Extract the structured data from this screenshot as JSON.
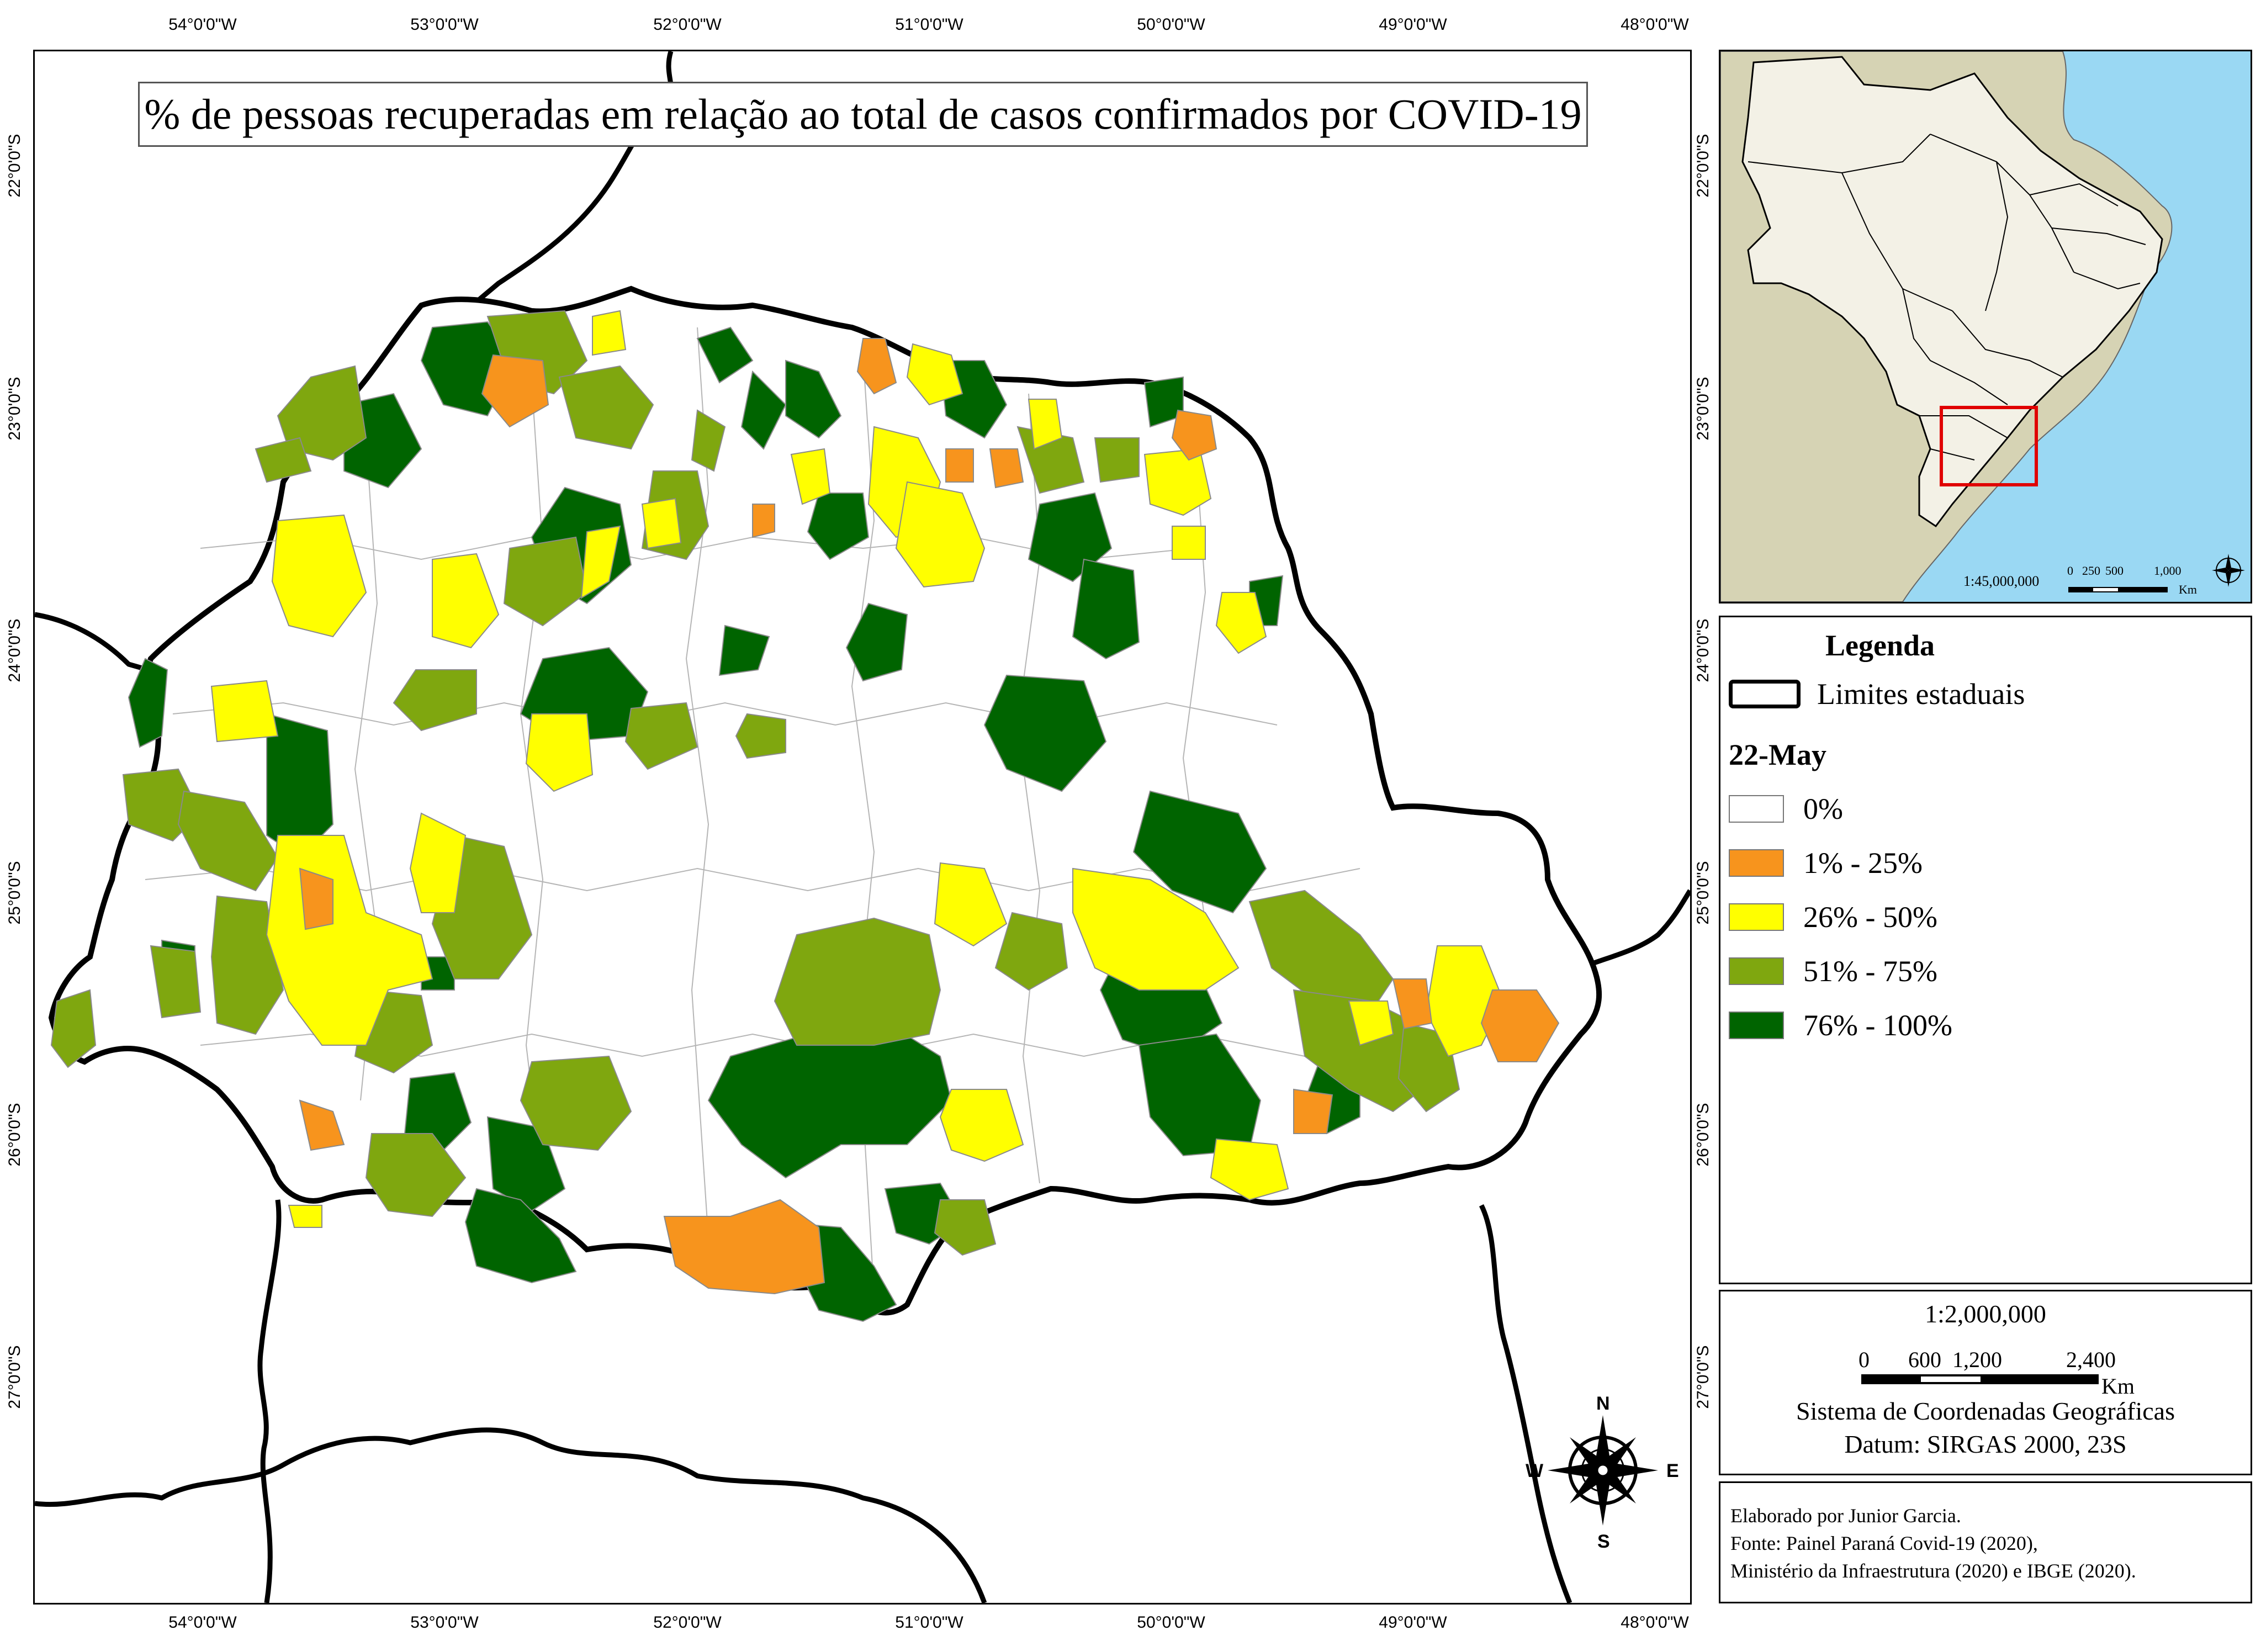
{
  "map_title": "% de pessoas recuperadas em relação ao total de casos confirmados por COVID-19",
  "longitude_labels": [
    "54°0'0\"W",
    "53°0'0\"W",
    "52°0'0\"W",
    "51°0'0\"W",
    "50°0'0\"W",
    "49°0'0\"W",
    "48°0'0\"W"
  ],
  "latitude_labels": [
    "22°0'0\"S",
    "23°0'0\"S",
    "24°0'0\"S",
    "25°0'0\"S",
    "26°0'0\"S",
    "27°0'0\"S"
  ],
  "inset": {
    "scale_label": "1:45,000,000",
    "scale_ticks": [
      "0",
      "250",
      "500",
      "1,000"
    ],
    "scale_unit": "Km"
  },
  "legend": {
    "title": "Legenda",
    "boundary_label": "Limites estaduais",
    "date_label": "22-May",
    "classes": [
      {
        "label": "0%",
        "color": "#ffffff"
      },
      {
        "label": "1% - 25%",
        "color": "#f7941d"
      },
      {
        "label": "26% - 50%",
        "color": "#ffff00"
      },
      {
        "label": "51% - 75%",
        "color": "#7fa70f"
      },
      {
        "label": "76% - 100%",
        "color": "#006400"
      }
    ]
  },
  "scale": {
    "ratio": "1:2,000,000",
    "ticks": [
      "0",
      "600",
      "1,200",
      "2,400"
    ],
    "unit": "Km",
    "coord_system": "Sistema de Coordenadas Geográficas",
    "datum": "Datum: SIRGAS 2000, 23S"
  },
  "credits": {
    "line1": "Elaborado por Junior Garcia.",
    "line2": "Fonte: Painel Paraná Covid-19 (2020),",
    "line3": "Ministério da Infraestrutura (2020) e IBGE (2020)."
  },
  "compass": {
    "n": "N",
    "s": "S",
    "e": "E",
    "w": "W"
  },
  "colors": {
    "ocean": "#9ad8f3",
    "land_inset": "#d6d3b4",
    "brazil_inset": "#f3f1e6",
    "highlight": "#e00000"
  }
}
